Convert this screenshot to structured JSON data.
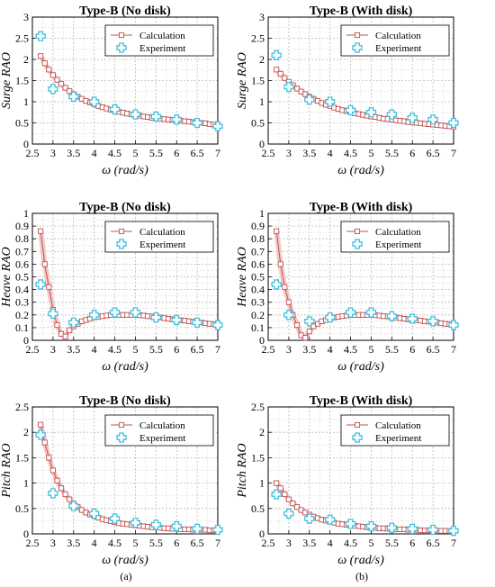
{
  "figure": {
    "captions": [
      "(a)",
      "(b)"
    ],
    "legend": {
      "calculation": "Calculation",
      "experiment": "Experiment"
    },
    "colors": {
      "calculation": "#c0504d",
      "calculation_band": "#f5c9c9",
      "experiment": "#3fbfe0",
      "grid": "#b8b8b8"
    }
  },
  "chart_data": [
    {
      "type": "line",
      "title": "Type-B (No disk)",
      "xlabel": "ω (rad/s)",
      "ylabel": "Surge RAO",
      "xlim": [
        2.5,
        7
      ],
      "ylim": [
        0,
        3
      ],
      "xticks": [
        "2.5",
        "3",
        "3.5",
        "4",
        "4.5",
        "5",
        "5.5",
        "6",
        "6.5",
        "7"
      ],
      "yticks": [
        "0",
        "0.5",
        "1",
        "1.5",
        "2",
        "2.5",
        "3"
      ],
      "grid": true,
      "legend_position": "top-right",
      "series": [
        {
          "name": "Calculation",
          "style": "line-square",
          "x": [
            2.7,
            2.8,
            2.9,
            3.0,
            3.1,
            3.2,
            3.3,
            3.4,
            3.5,
            3.6,
            3.7,
            3.8,
            3.9,
            4.0,
            4.1,
            4.2,
            4.3,
            4.4,
            4.5,
            4.6,
            4.7,
            4.8,
            4.9,
            5.0,
            5.1,
            5.2,
            5.3,
            5.4,
            5.5,
            5.6,
            5.7,
            5.8,
            5.9,
            6.0,
            6.1,
            6.2,
            6.3,
            6.4,
            6.5,
            6.6,
            6.7,
            6.8,
            6.9,
            7.0
          ],
          "y": [
            2.08,
            1.91,
            1.76,
            1.63,
            1.52,
            1.42,
            1.33,
            1.25,
            1.18,
            1.12,
            1.07,
            1.02,
            0.98,
            0.94,
            0.9,
            0.87,
            0.84,
            0.81,
            0.78,
            0.76,
            0.74,
            0.72,
            0.7,
            0.68,
            0.67,
            0.65,
            0.64,
            0.62,
            0.61,
            0.6,
            0.59,
            0.58,
            0.57,
            0.56,
            0.55,
            0.54,
            0.53,
            0.52,
            0.51,
            0.5,
            0.49,
            0.47,
            0.46,
            0.45
          ]
        },
        {
          "name": "Experiment",
          "style": "marker-cross",
          "x": [
            2.7,
            3.0,
            3.5,
            4.0,
            4.5,
            5.0,
            5.5,
            6.0,
            6.5,
            7.0
          ],
          "y": [
            2.55,
            1.3,
            1.12,
            1.0,
            0.82,
            0.7,
            0.65,
            0.58,
            0.5,
            0.42
          ]
        }
      ]
    },
    {
      "type": "line",
      "title": "Type-B (With disk)",
      "xlabel": "ω (rad/s)",
      "ylabel": "Surge RAO",
      "xlim": [
        2.5,
        7
      ],
      "ylim": [
        0,
        3
      ],
      "xticks": [
        "2.5",
        "3",
        "3.5",
        "4",
        "4.5",
        "5",
        "5.5",
        "6",
        "6.5",
        "7"
      ],
      "yticks": [
        "0",
        "0.5",
        "1",
        "1.5",
        "2",
        "2.5",
        "3"
      ],
      "grid": true,
      "legend_position": "top-right",
      "series": [
        {
          "name": "Calculation",
          "style": "line-square",
          "x": [
            2.7,
            2.8,
            2.9,
            3.0,
            3.1,
            3.2,
            3.3,
            3.4,
            3.5,
            3.6,
            3.7,
            3.8,
            3.9,
            4.0,
            4.1,
            4.2,
            4.3,
            4.4,
            4.5,
            4.6,
            4.7,
            4.8,
            4.9,
            5.0,
            5.1,
            5.2,
            5.3,
            5.4,
            5.5,
            5.6,
            5.7,
            5.8,
            5.9,
            6.0,
            6.1,
            6.2,
            6.3,
            6.4,
            6.5,
            6.6,
            6.7,
            6.8,
            6.9,
            7.0
          ],
          "y": [
            1.76,
            1.66,
            1.56,
            1.47,
            1.39,
            1.31,
            1.24,
            1.18,
            1.12,
            1.07,
            1.02,
            0.97,
            0.93,
            0.9,
            0.86,
            0.83,
            0.8,
            0.78,
            0.75,
            0.73,
            0.71,
            0.69,
            0.67,
            0.65,
            0.64,
            0.62,
            0.6,
            0.59,
            0.58,
            0.56,
            0.55,
            0.54,
            0.52,
            0.51,
            0.5,
            0.49,
            0.48,
            0.47,
            0.46,
            0.45,
            0.44,
            0.43,
            0.42,
            0.41
          ]
        },
        {
          "name": "Experiment",
          "style": "marker-cross",
          "x": [
            2.7,
            3.0,
            3.5,
            4.0,
            4.5,
            5.0,
            5.5,
            6.0,
            6.5,
            7.0
          ],
          "y": [
            2.1,
            1.35,
            1.05,
            1.0,
            0.8,
            0.75,
            0.7,
            0.62,
            0.58,
            0.5
          ]
        }
      ]
    },
    {
      "type": "line",
      "title": "Type-B (No disk)",
      "xlabel": "ω (rad/s)",
      "ylabel": "Heave RAO",
      "xlim": [
        2.5,
        7
      ],
      "ylim": [
        0,
        1
      ],
      "xticks": [
        "2.5",
        "3",
        "3.5",
        "4",
        "4.5",
        "5",
        "5.5",
        "6",
        "6.5",
        "7"
      ],
      "yticks": [
        "0",
        "0.1",
        "0.2",
        "0.3",
        "0.4",
        "0.5",
        "0.6",
        "0.7",
        "0.8",
        "0.9",
        "1"
      ],
      "grid": true,
      "legend_position": "top-right",
      "series": [
        {
          "name": "Calculation",
          "style": "line-square",
          "x": [
            2.7,
            2.8,
            2.9,
            3.0,
            3.1,
            3.2,
            3.3,
            3.4,
            3.5,
            3.6,
            3.7,
            3.8,
            3.9,
            4.0,
            4.1,
            4.2,
            4.3,
            4.4,
            4.5,
            4.6,
            4.7,
            4.8,
            4.9,
            5.0,
            5.1,
            5.2,
            5.3,
            5.4,
            5.5,
            5.6,
            5.7,
            5.8,
            5.9,
            6.0,
            6.1,
            6.2,
            6.3,
            6.4,
            6.5,
            6.6,
            6.7,
            6.8,
            6.9,
            7.0
          ],
          "y": [
            0.86,
            0.6,
            0.42,
            0.24,
            0.12,
            0.05,
            0.03,
            0.08,
            0.11,
            0.13,
            0.15,
            0.16,
            0.17,
            0.18,
            0.185,
            0.19,
            0.195,
            0.2,
            0.2,
            0.2,
            0.2,
            0.2,
            0.2,
            0.2,
            0.198,
            0.195,
            0.19,
            0.188,
            0.185,
            0.18,
            0.175,
            0.17,
            0.165,
            0.162,
            0.158,
            0.155,
            0.15,
            0.147,
            0.143,
            0.14,
            0.135,
            0.13,
            0.128,
            0.125
          ]
        },
        {
          "name": "Experiment",
          "style": "marker-cross",
          "x": [
            2.7,
            3.0,
            3.5,
            4.0,
            4.5,
            5.0,
            5.5,
            6.0,
            6.5,
            7.0
          ],
          "y": [
            0.44,
            0.21,
            0.14,
            0.2,
            0.22,
            0.22,
            0.18,
            0.16,
            0.14,
            0.12
          ]
        }
      ]
    },
    {
      "type": "line",
      "title": "Type-B (With disk)",
      "xlabel": "ω (rad/s)",
      "ylabel": "Heave RAO",
      "xlim": [
        2.5,
        7
      ],
      "ylim": [
        0,
        1
      ],
      "xticks": [
        "2.5",
        "3",
        "3.5",
        "4",
        "4.5",
        "5",
        "5.5",
        "6",
        "6.5",
        "7"
      ],
      "yticks": [
        "0",
        "0.1",
        "0.2",
        "0.3",
        "0.4",
        "0.5",
        "0.6",
        "0.7",
        "0.8",
        "0.9",
        "1"
      ],
      "grid": true,
      "legend_position": "top-right",
      "series": [
        {
          "name": "Calculation",
          "style": "line-square",
          "x": [
            2.7,
            2.8,
            2.9,
            3.0,
            3.1,
            3.2,
            3.3,
            3.4,
            3.5,
            3.6,
            3.7,
            3.8,
            3.9,
            4.0,
            4.1,
            4.2,
            4.3,
            4.4,
            4.5,
            4.6,
            4.7,
            4.8,
            4.9,
            5.0,
            5.1,
            5.2,
            5.3,
            5.4,
            5.5,
            5.6,
            5.7,
            5.8,
            5.9,
            6.0,
            6.1,
            6.2,
            6.3,
            6.4,
            6.5,
            6.6,
            6.7,
            6.8,
            6.9,
            7.0
          ],
          "y": [
            0.86,
            0.6,
            0.42,
            0.3,
            0.2,
            0.12,
            0.04,
            0.02,
            0.07,
            0.11,
            0.13,
            0.15,
            0.16,
            0.17,
            0.18,
            0.185,
            0.19,
            0.195,
            0.2,
            0.2,
            0.2,
            0.2,
            0.2,
            0.2,
            0.198,
            0.195,
            0.19,
            0.188,
            0.185,
            0.18,
            0.175,
            0.17,
            0.165,
            0.162,
            0.158,
            0.155,
            0.15,
            0.147,
            0.143,
            0.14,
            0.135,
            0.13,
            0.128,
            0.125
          ]
        },
        {
          "name": "Experiment",
          "style": "marker-cross",
          "x": [
            2.7,
            3.0,
            3.5,
            4.0,
            4.5,
            5.0,
            5.5,
            6.0,
            6.5,
            7.0
          ],
          "y": [
            0.44,
            0.2,
            0.15,
            0.18,
            0.22,
            0.22,
            0.19,
            0.17,
            0.15,
            0.12
          ]
        }
      ]
    },
    {
      "type": "line",
      "title": "Type-B (No disk)",
      "xlabel": "ω (rad/s)",
      "ylabel": "Pitch RAO",
      "xlim": [
        2.5,
        7
      ],
      "ylim": [
        0,
        2.5
      ],
      "xticks": [
        "2.5",
        "3",
        "3.5",
        "4",
        "4.5",
        "5",
        "5.5",
        "6",
        "6.5",
        "7"
      ],
      "yticks": [
        "0",
        "0.5",
        "1",
        "1.5",
        "2",
        "2.5"
      ],
      "grid": true,
      "legend_position": "top-right",
      "series": [
        {
          "name": "Calculation",
          "style": "line-square",
          "x": [
            2.7,
            2.8,
            2.9,
            3.0,
            3.1,
            3.2,
            3.3,
            3.4,
            3.5,
            3.6,
            3.7,
            3.8,
            3.9,
            4.0,
            4.1,
            4.2,
            4.3,
            4.4,
            4.5,
            4.6,
            4.7,
            4.8,
            4.9,
            5.0,
            5.1,
            5.2,
            5.3,
            5.4,
            5.5,
            5.6,
            5.7,
            5.8,
            5.9,
            6.0,
            6.1,
            6.2,
            6.3,
            6.4,
            6.5,
            6.6,
            6.7,
            6.8,
            6.9,
            7.0
          ],
          "y": [
            2.15,
            1.8,
            1.5,
            1.25,
            1.05,
            0.9,
            0.78,
            0.68,
            0.6,
            0.53,
            0.47,
            0.42,
            0.38,
            0.35,
            0.32,
            0.29,
            0.27,
            0.25,
            0.23,
            0.21,
            0.2,
            0.19,
            0.18,
            0.17,
            0.16,
            0.15,
            0.14,
            0.13,
            0.13,
            0.12,
            0.11,
            0.11,
            0.1,
            0.1,
            0.09,
            0.09,
            0.09,
            0.08,
            0.08,
            0.08,
            0.08,
            0.07,
            0.07,
            0.07
          ]
        },
        {
          "name": "Experiment",
          "style": "marker-cross",
          "x": [
            2.7,
            3.0,
            3.5,
            4.0,
            4.5,
            5.0,
            5.5,
            6.0,
            6.5,
            7.0
          ],
          "y": [
            1.95,
            0.8,
            0.55,
            0.4,
            0.3,
            0.22,
            0.18,
            0.15,
            0.1,
            0.08
          ]
        }
      ]
    },
    {
      "type": "line",
      "title": "Type-B (With disk)",
      "xlabel": "ω (rad/s)",
      "ylabel": "Pitch RAO",
      "xlim": [
        2.5,
        7
      ],
      "ylim": [
        0,
        2.5
      ],
      "xticks": [
        "2.5",
        "3",
        "3.5",
        "4",
        "4.5",
        "5",
        "5.5",
        "6",
        "6.5",
        "7"
      ],
      "yticks": [
        "0",
        "0.5",
        "1",
        "1.5",
        "2",
        "2.5"
      ],
      "grid": true,
      "legend_position": "top-right",
      "series": [
        {
          "name": "Calculation",
          "style": "line-square",
          "x": [
            2.7,
            2.8,
            2.9,
            3.0,
            3.1,
            3.2,
            3.3,
            3.4,
            3.5,
            3.6,
            3.7,
            3.8,
            3.9,
            4.0,
            4.1,
            4.2,
            4.3,
            4.4,
            4.5,
            4.6,
            4.7,
            4.8,
            4.9,
            5.0,
            5.1,
            5.2,
            5.3,
            5.4,
            5.5,
            5.6,
            5.7,
            5.8,
            5.9,
            6.0,
            6.1,
            6.2,
            6.3,
            6.4,
            6.5,
            6.6,
            6.7,
            6.8,
            6.9,
            7.0
          ],
          "y": [
            1.0,
            0.9,
            0.78,
            0.68,
            0.6,
            0.53,
            0.47,
            0.42,
            0.38,
            0.34,
            0.31,
            0.28,
            0.26,
            0.24,
            0.22,
            0.2,
            0.19,
            0.18,
            0.17,
            0.16,
            0.15,
            0.14,
            0.13,
            0.13,
            0.12,
            0.11,
            0.11,
            0.1,
            0.1,
            0.09,
            0.09,
            0.09,
            0.08,
            0.08,
            0.08,
            0.07,
            0.07,
            0.07,
            0.07,
            0.06,
            0.06,
            0.06,
            0.06,
            0.05
          ]
        },
        {
          "name": "Experiment",
          "style": "marker-cross",
          "x": [
            2.7,
            3.0,
            3.5,
            4.0,
            4.5,
            5.0,
            5.5,
            6.0,
            6.5,
            7.0
          ],
          "y": [
            0.78,
            0.4,
            0.3,
            0.28,
            0.2,
            0.15,
            0.12,
            0.1,
            0.08,
            0.06
          ]
        }
      ]
    }
  ]
}
